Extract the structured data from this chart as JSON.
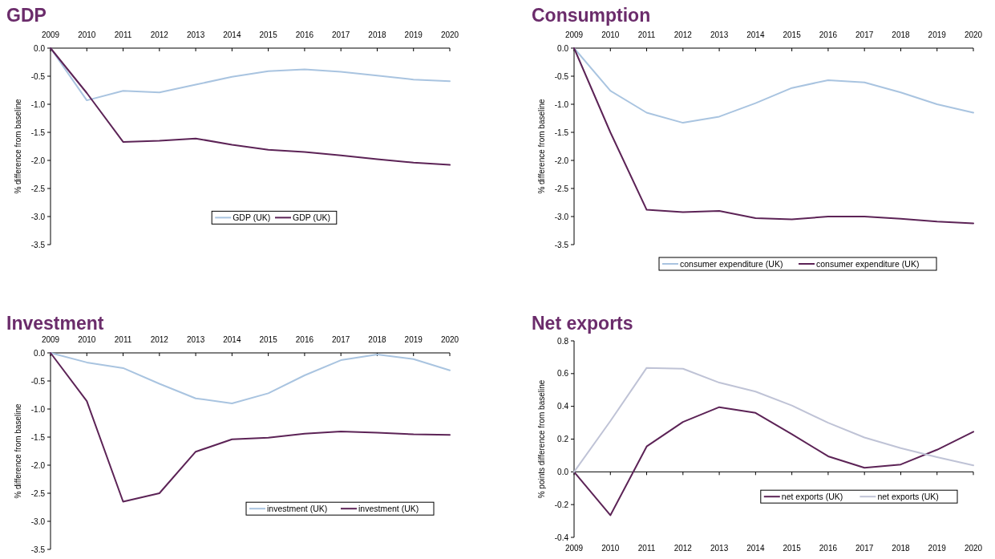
{
  "chart_data": [
    {
      "type": "line",
      "title": "GDP",
      "ylabel": "% difference from baseline",
      "categories": [
        "2009",
        "2010",
        "2011",
        "2012",
        "2013",
        "2014",
        "2015",
        "2016",
        "2017",
        "2018",
        "2019",
        "2020"
      ],
      "ylim": [
        -3.5,
        0
      ],
      "yticks": [
        {
          "value": 0,
          "label": "0.0"
        },
        -0.5,
        {
          "value": -1,
          "label": "-1.0"
        },
        -1.5,
        {
          "value": -2,
          "label": "-2.0"
        },
        -2.5,
        {
          "value": -3,
          "label": "-3.0"
        },
        -3.5
      ],
      "legend": "bottom center",
      "marker": "none",
      "series": [
        {
          "name": "GDP (UK)",
          "color": "#a9c4e0",
          "values": [
            0,
            -0.93,
            -0.76,
            -0.79,
            -0.65,
            -0.51,
            -0.41,
            -0.38,
            -0.42,
            -0.49,
            -0.56,
            -0.59
          ]
        },
        {
          "name": "GDP (UK)",
          "color": "#5c2356",
          "values": [
            0,
            -0.8,
            -1.67,
            -1.65,
            -1.61,
            -1.72,
            -1.81,
            -1.85,
            -1.91,
            -1.98,
            -2.04,
            -2.08
          ]
        }
      ]
    },
    {
      "type": "line",
      "title": "Consumption",
      "ylabel": "% difference from baseline",
      "categories": [
        "2009",
        "2010",
        "2011",
        "2012",
        "2013",
        "2014",
        "2015",
        "2016",
        "2017",
        "2018",
        "2019",
        "2020"
      ],
      "ylim": [
        -3.5,
        0
      ],
      "yticks": [
        {
          "value": 0,
          "label": "0.0"
        },
        -0.5,
        {
          "value": -1,
          "label": "-1.0"
        },
        -1.5,
        {
          "value": -2,
          "label": "-2.0"
        },
        -2.5,
        {
          "value": -3,
          "label": "-3.0"
        },
        -3.5
      ],
      "legend": "bottom",
      "marker": "none",
      "series": [
        {
          "name": "consumer expenditure (UK)",
          "color": "#a9c4e0",
          "values": [
            0,
            -0.76,
            -1.15,
            -1.33,
            -1.22,
            -0.98,
            -0.71,
            -0.57,
            -0.61,
            -0.79,
            -1.0,
            -1.15
          ]
        },
        {
          "name": "consumer expenditure (UK)",
          "color": "#5c2356",
          "values": [
            0,
            -1.5,
            -2.88,
            -2.92,
            -2.9,
            -3.03,
            -3.05,
            -3.0,
            -3.0,
            -3.04,
            -3.09,
            -3.12
          ]
        }
      ]
    },
    {
      "type": "line",
      "title": "Investment",
      "ylabel": "% difference from baseline",
      "categories": [
        "2009",
        "2010",
        "2011",
        "2012",
        "2013",
        "2014",
        "2015",
        "2016",
        "2017",
        "2018",
        "2019",
        "2020"
      ],
      "ylim": [
        -3.5,
        0
      ],
      "yticks": [
        {
          "value": 0,
          "label": "0.0"
        },
        -0.5,
        {
          "value": -1,
          "label": "-1.0"
        },
        -1.5,
        {
          "value": -2,
          "label": "-2.0"
        },
        -2.5,
        {
          "value": -3,
          "label": "-3.0"
        },
        -3.5
      ],
      "legend": "bottom right",
      "marker": "none",
      "series": [
        {
          "name": "investment (UK)",
          "color": "#a9c4e0",
          "values": [
            0,
            -0.17,
            -0.27,
            -0.55,
            -0.81,
            -0.9,
            -0.72,
            -0.4,
            -0.13,
            -0.03,
            -0.11,
            -0.31
          ]
        },
        {
          "name": "investment (UK)",
          "color": "#5c2356",
          "values": [
            0,
            -0.86,
            -2.65,
            -2.5,
            -1.76,
            -1.54,
            -1.51,
            -1.44,
            -1.4,
            -1.42,
            -1.45,
            -1.46
          ]
        }
      ]
    },
    {
      "type": "line",
      "title": "Net exports",
      "ylabel": "% points difference from baseline",
      "categories": [
        "2009",
        "2010",
        "2011",
        "2012",
        "2013",
        "2014",
        "2015",
        "2016",
        "2017",
        "2018",
        "2019",
        "2020"
      ],
      "ylim": [
        -0.4,
        0.8
      ],
      "yticks": [
        -0.4,
        -0.2,
        {
          "value": 0,
          "label": "0.0"
        },
        0.2,
        0.4,
        0.6,
        0.8
      ],
      "legend": "bottom right",
      "marker": "none",
      "series": [
        {
          "name": "net exports (UK)",
          "color": "#5c2356",
          "values": [
            0,
            -0.265,
            0.155,
            0.305,
            0.395,
            0.36,
            0.23,
            0.095,
            0.025,
            0.045,
            0.135,
            0.245
          ]
        },
        {
          "name": "net exports (UK)",
          "color": "#bfc3d6",
          "values": [
            0,
            0.31,
            0.635,
            0.63,
            0.545,
            0.49,
            0.405,
            0.3,
            0.21,
            0.145,
            0.09,
            0.04
          ]
        }
      ]
    }
  ]
}
